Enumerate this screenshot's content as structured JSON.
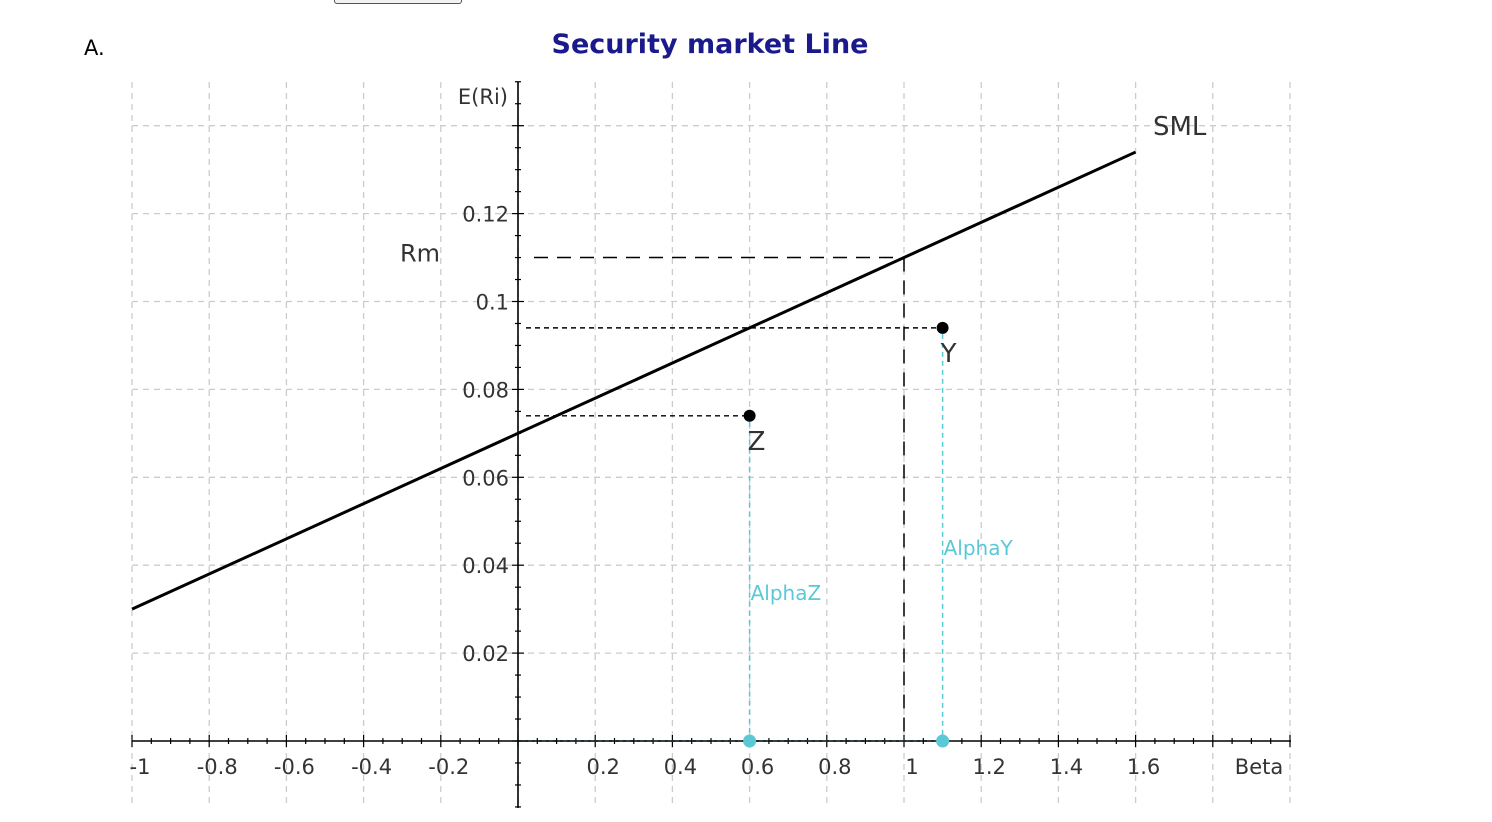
{
  "panel_label": "A.",
  "chart_data": {
    "type": "line",
    "title": "Security market Line",
    "xlabel": "Beta",
    "ylabel": "E(Ri)",
    "xlim": [
      -1,
      2
    ],
    "ylim": [
      0,
      0.14
    ],
    "x_ticks": [
      -1,
      -0.8,
      -0.6,
      -0.4,
      -0.2,
      0.2,
      0.4,
      0.6,
      0.8,
      1,
      1.2,
      1.4,
      1.6
    ],
    "x_tick_labels": [
      "-1",
      "-0.8",
      "-0.6",
      "-0.4",
      "-0.2",
      "0.2",
      "0.4",
      "0.6",
      "0.8",
      "1",
      "1.2",
      "1.4",
      "1.6"
    ],
    "y_ticks": [
      0.02,
      0.04,
      0.06,
      0.08,
      0.1,
      0.12
    ],
    "y_tick_labels": [
      "0.02",
      "0.04",
      "0.06",
      "0.08",
      "0.1",
      "0.12"
    ],
    "grid": true,
    "colors": {
      "title": "#1a1a8c",
      "line": "#000000",
      "alpha": "#5bc8d6",
      "grid": "#cccccc"
    },
    "sml": {
      "name": "SML",
      "x": [
        -1,
        1.6
      ],
      "y": [
        0.03,
        0.134
      ]
    },
    "rm": {
      "label": "Rm",
      "beta": 1,
      "value": 0.11
    },
    "points": [
      {
        "name": "Z",
        "beta": 0.6,
        "return": 0.074
      },
      {
        "name": "Y",
        "beta": 1.1,
        "return": 0.094
      }
    ],
    "alpha_labels": [
      {
        "text": "AlphaZ",
        "beta": 0.6
      },
      {
        "text": "AlphaY",
        "beta": 1.1
      }
    ]
  }
}
